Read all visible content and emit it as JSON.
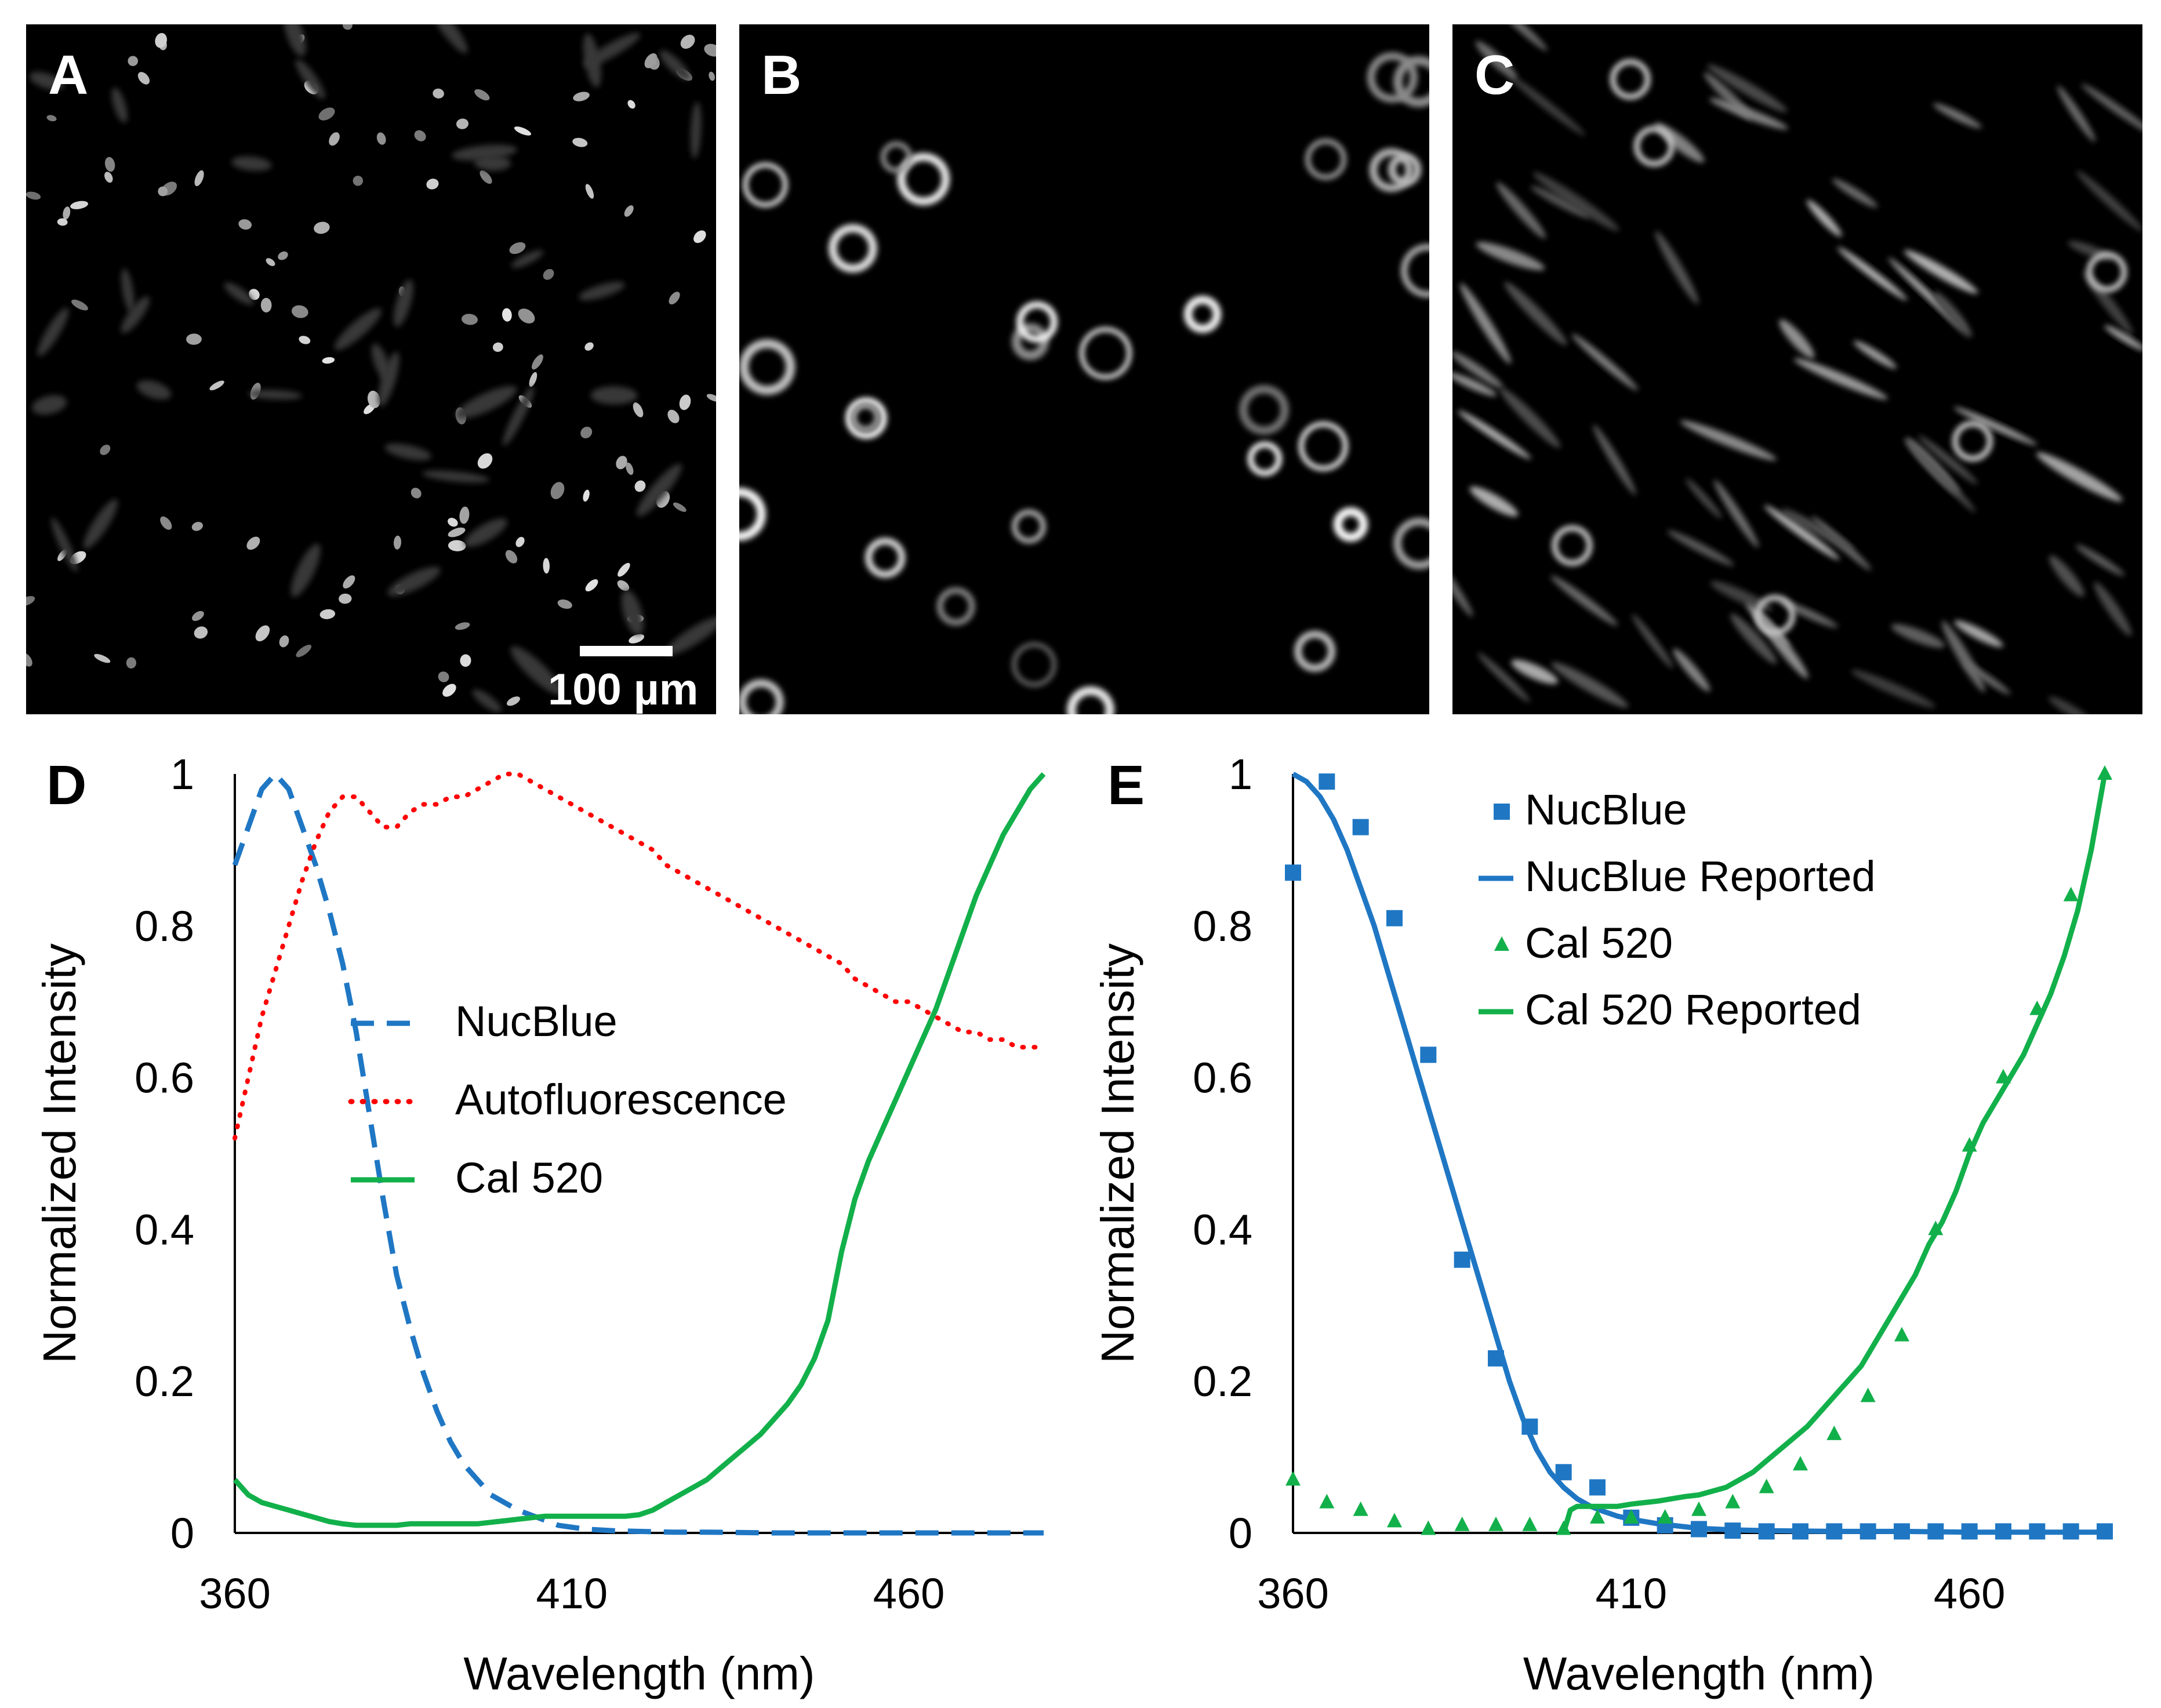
{
  "panels": {
    "A": {
      "letter": "A",
      "scalebar_label": "100 µm"
    },
    "B": {
      "letter": "B"
    },
    "C": {
      "letter": "C"
    }
  },
  "chart_data": [
    {
      "panel": "D",
      "type": "line",
      "xlabel": "Wavelength (nm)",
      "ylabel": "Normalized Intensity",
      "xlim": [
        360,
        480
      ],
      "ylim": [
        0,
        1
      ],
      "xticks": [
        360,
        410,
        460
      ],
      "yticks": [
        0,
        0.2,
        0.4,
        0.6,
        0.8,
        1
      ],
      "ytick_labels": [
        "0",
        "0.2",
        "0.4",
        "0.6",
        "0.8",
        "1"
      ],
      "grid": false,
      "legend_position": "center",
      "series": [
        {
          "name": "NucBlue",
          "style": "dashed",
          "color": "#1f77c4",
          "x": [
            360,
            362,
            364,
            366,
            368,
            370,
            372,
            374,
            376,
            378,
            380,
            382,
            384,
            386,
            388,
            390,
            392,
            394,
            396,
            398,
            400,
            402,
            405,
            408,
            412,
            416,
            420,
            425,
            430,
            440,
            450,
            460,
            470,
            480
          ],
          "y": [
            0.88,
            0.93,
            0.98,
            1.0,
            0.98,
            0.93,
            0.88,
            0.82,
            0.75,
            0.66,
            0.55,
            0.44,
            0.34,
            0.27,
            0.21,
            0.16,
            0.12,
            0.09,
            0.07,
            0.05,
            0.04,
            0.03,
            0.02,
            0.01,
            0.005,
            0.003,
            0.002,
            0.001,
            0.001,
            0.0,
            0.0,
            0.0,
            0.0,
            0.0
          ]
        },
        {
          "name": "Autofluorescence",
          "style": "dotted",
          "color": "#ff0000",
          "x": [
            360,
            362,
            364,
            366,
            368,
            370,
            372,
            374,
            376,
            378,
            380,
            382,
            384,
            386,
            388,
            390,
            392,
            394,
            396,
            398,
            400,
            402,
            404,
            406,
            408,
            410,
            412,
            414,
            416,
            418,
            420,
            422,
            424,
            426,
            428,
            430,
            432,
            434,
            436,
            438,
            440,
            442,
            444,
            446,
            448,
            450,
            452,
            454,
            456,
            458,
            460,
            462,
            464,
            466,
            468,
            470,
            472,
            474,
            476,
            478,
            480
          ],
          "y": [
            0.52,
            0.6,
            0.68,
            0.74,
            0.8,
            0.86,
            0.91,
            0.95,
            0.97,
            0.97,
            0.95,
            0.93,
            0.93,
            0.95,
            0.96,
            0.96,
            0.97,
            0.97,
            0.98,
            0.99,
            1.0,
            1.0,
            0.99,
            0.98,
            0.97,
            0.96,
            0.95,
            0.94,
            0.93,
            0.92,
            0.91,
            0.9,
            0.88,
            0.87,
            0.86,
            0.85,
            0.84,
            0.83,
            0.82,
            0.81,
            0.8,
            0.79,
            0.78,
            0.77,
            0.76,
            0.75,
            0.73,
            0.72,
            0.71,
            0.7,
            0.7,
            0.69,
            0.68,
            0.67,
            0.66,
            0.66,
            0.65,
            0.65,
            0.64,
            0.64,
            0.64
          ]
        },
        {
          "name": "Cal 520",
          "style": "solid",
          "color": "#12b04a",
          "x": [
            360,
            362,
            364,
            366,
            368,
            370,
            372,
            374,
            376,
            378,
            380,
            382,
            384,
            386,
            388,
            390,
            392,
            394,
            396,
            398,
            400,
            402,
            404,
            406,
            408,
            410,
            412,
            414,
            416,
            418,
            420,
            422,
            424,
            426,
            428,
            430,
            432,
            434,
            436,
            438,
            440,
            442,
            444,
            446,
            448,
            450,
            452,
            454,
            456,
            458,
            460,
            462,
            464,
            466,
            468,
            470,
            472,
            474,
            476,
            478,
            480
          ],
          "y": [
            0.07,
            0.05,
            0.04,
            0.035,
            0.03,
            0.025,
            0.02,
            0.015,
            0.012,
            0.01,
            0.01,
            0.01,
            0.01,
            0.012,
            0.012,
            0.012,
            0.012,
            0.012,
            0.012,
            0.014,
            0.016,
            0.018,
            0.02,
            0.022,
            0.022,
            0.022,
            0.022,
            0.022,
            0.022,
            0.022,
            0.024,
            0.03,
            0.04,
            0.05,
            0.06,
            0.07,
            0.085,
            0.1,
            0.115,
            0.13,
            0.15,
            0.17,
            0.195,
            0.23,
            0.28,
            0.37,
            0.44,
            0.49,
            0.53,
            0.57,
            0.61,
            0.65,
            0.69,
            0.74,
            0.79,
            0.84,
            0.88,
            0.92,
            0.95,
            0.98,
            1.0
          ]
        }
      ]
    },
    {
      "panel": "E",
      "type": "line",
      "xlabel": "Wavelength (nm)",
      "ylabel": "Normalized Intensity",
      "xlim": [
        360,
        480
      ],
      "ylim": [
        0,
        1
      ],
      "xticks": [
        360,
        410,
        460
      ],
      "yticks": [
        0,
        0.2,
        0.4,
        0.6,
        0.8,
        1
      ],
      "ytick_labels": [
        "0",
        "0.2",
        "0.4",
        "0.6",
        "0.8",
        "1"
      ],
      "grid": false,
      "legend_position": "top-right",
      "series": [
        {
          "name": "NucBlue",
          "style": "square-markers",
          "color": "#1f77c4",
          "x": [
            360,
            365,
            370,
            375,
            380,
            385,
            390,
            395,
            400,
            405,
            410,
            415,
            420,
            425,
            430,
            435,
            440,
            445,
            450,
            455,
            460,
            465,
            470,
            475,
            480
          ],
          "y": [
            0.87,
            0.99,
            0.93,
            0.81,
            0.63,
            0.36,
            0.23,
            0.14,
            0.08,
            0.06,
            0.02,
            0.01,
            0.005,
            0.003,
            0.002,
            0.002,
            0.002,
            0.002,
            0.002,
            0.002,
            0.002,
            0.002,
            0.002,
            0.002,
            0.002
          ]
        },
        {
          "name": "NucBlue Reported",
          "style": "solid",
          "color": "#1f77c4",
          "x": [
            360,
            362,
            364,
            366,
            368,
            370,
            372,
            374,
            376,
            378,
            380,
            382,
            384,
            386,
            388,
            390,
            392,
            394,
            396,
            398,
            400,
            402,
            404,
            406,
            408,
            410,
            412,
            414,
            416,
            418,
            420,
            425,
            430,
            440,
            450,
            460,
            470,
            480
          ],
          "y": [
            1.0,
            0.99,
            0.97,
            0.94,
            0.9,
            0.85,
            0.8,
            0.74,
            0.68,
            0.62,
            0.56,
            0.5,
            0.44,
            0.38,
            0.32,
            0.26,
            0.2,
            0.15,
            0.11,
            0.08,
            0.06,
            0.045,
            0.035,
            0.028,
            0.022,
            0.018,
            0.015,
            0.012,
            0.01,
            0.008,
            0.006,
            0.004,
            0.003,
            0.002,
            0.002,
            0.001,
            0.001,
            0.001
          ]
        },
        {
          "name": "Cal 520",
          "style": "triangle-markers",
          "color": "#12b04a",
          "x": [
            360,
            365,
            370,
            375,
            380,
            385,
            390,
            395,
            400,
            405,
            410,
            415,
            420,
            425,
            430,
            435,
            440,
            445,
            450,
            455,
            460,
            465,
            470,
            475,
            480
          ],
          "y": [
            0.07,
            0.04,
            0.03,
            0.015,
            0.005,
            0.01,
            0.01,
            0.01,
            0.005,
            0.02,
            0.02,
            0.02,
            0.03,
            0.04,
            0.06,
            0.09,
            0.13,
            0.18,
            0.26,
            0.4,
            0.51,
            0.6,
            0.69,
            0.84,
            1.0
          ]
        },
        {
          "name": "Cal 520 Reported",
          "style": "solid",
          "color": "#12b04a",
          "x": [
            400,
            401,
            402,
            404,
            406,
            408,
            410,
            412,
            414,
            416,
            418,
            420,
            422,
            424,
            426,
            428,
            430,
            432,
            434,
            436,
            438,
            440,
            442,
            444,
            446,
            448,
            450,
            452,
            454,
            456,
            458,
            460,
            462,
            464,
            466,
            468,
            470,
            472,
            474,
            476,
            478,
            480
          ],
          "y": [
            0.0,
            0.03,
            0.035,
            0.035,
            0.035,
            0.035,
            0.038,
            0.04,
            0.042,
            0.045,
            0.048,
            0.05,
            0.055,
            0.06,
            0.07,
            0.08,
            0.095,
            0.11,
            0.125,
            0.14,
            0.16,
            0.18,
            0.2,
            0.22,
            0.25,
            0.28,
            0.31,
            0.34,
            0.38,
            0.41,
            0.45,
            0.5,
            0.54,
            0.57,
            0.6,
            0.63,
            0.67,
            0.71,
            0.76,
            0.82,
            0.9,
            1.0
          ]
        }
      ]
    }
  ]
}
